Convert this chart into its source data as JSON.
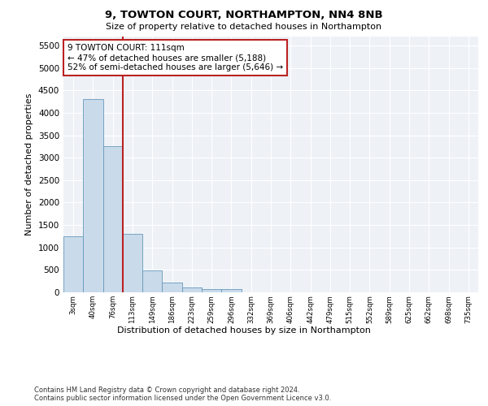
{
  "title_line1": "9, TOWTON COURT, NORTHAMPTON, NN4 8NB",
  "title_line2": "Size of property relative to detached houses in Northampton",
  "xlabel": "Distribution of detached houses by size in Northampton",
  "ylabel": "Number of detached properties",
  "footnote": "Contains HM Land Registry data © Crown copyright and database right 2024.\nContains public sector information licensed under the Open Government Licence v3.0.",
  "bar_color": "#c9daea",
  "bar_edge_color": "#6699bb",
  "vline_color": "#bb2222",
  "property_size": 111,
  "annotation_text": "9 TOWTON COURT: 111sqm\n← 47% of detached houses are smaller (5,188)\n52% of semi-detached houses are larger (5,646) →",
  "categories": [
    "3sqm",
    "40sqm",
    "76sqm",
    "113sqm",
    "149sqm",
    "186sqm",
    "223sqm",
    "259sqm",
    "296sqm",
    "332sqm",
    "369sqm",
    "406sqm",
    "442sqm",
    "479sqm",
    "515sqm",
    "552sqm",
    "589sqm",
    "625sqm",
    "662sqm",
    "698sqm",
    "735sqm"
  ],
  "values": [
    1250,
    4300,
    3250,
    1300,
    480,
    210,
    100,
    80,
    70,
    0,
    0,
    0,
    0,
    0,
    0,
    0,
    0,
    0,
    0,
    0,
    0
  ],
  "ylim": [
    0,
    5700
  ],
  "yticks": [
    0,
    500,
    1000,
    1500,
    2000,
    2500,
    3000,
    3500,
    4000,
    4500,
    5000,
    5500
  ],
  "vline_x_index": 2.5,
  "bg_color": "#eef2f7",
  "grid_color": "#ffffff"
}
